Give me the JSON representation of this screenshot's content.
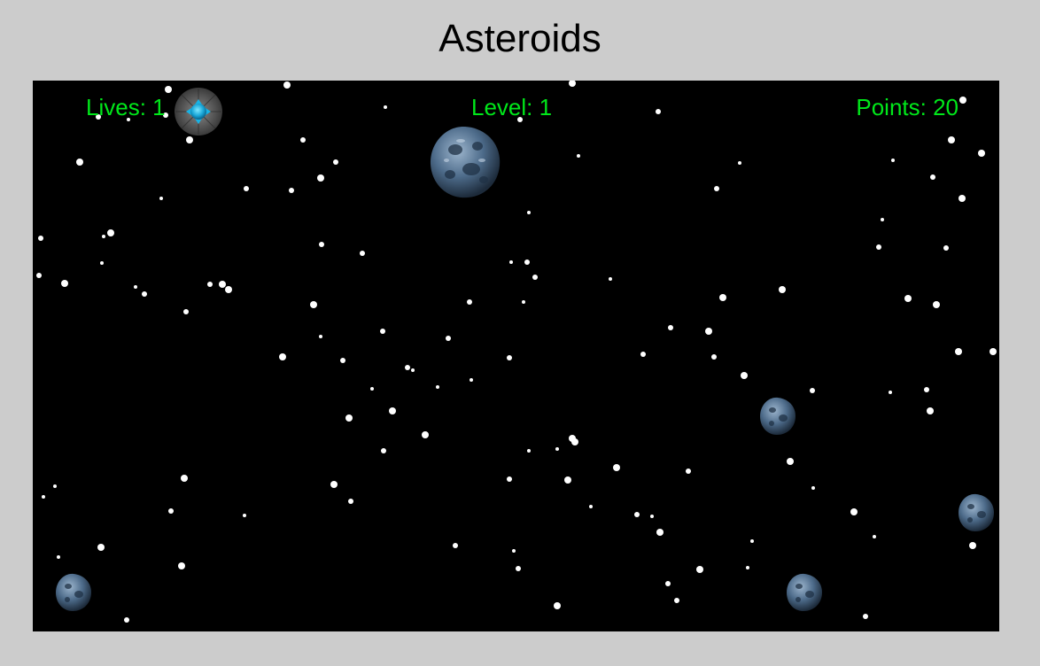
{
  "page": {
    "title": "Asteroids"
  },
  "hud": {
    "lives_label": "Lives: 1",
    "level_label": "Level: 1",
    "points_label": "Points: 20",
    "text_color": "#00e81a"
  },
  "game": {
    "background_color": "#000000",
    "ship_icon": "spaceship-icon",
    "asteroid_icon": "asteroid-icon",
    "asteroid_color": "#4d6b8a",
    "star_color": "#ffffff"
  }
}
